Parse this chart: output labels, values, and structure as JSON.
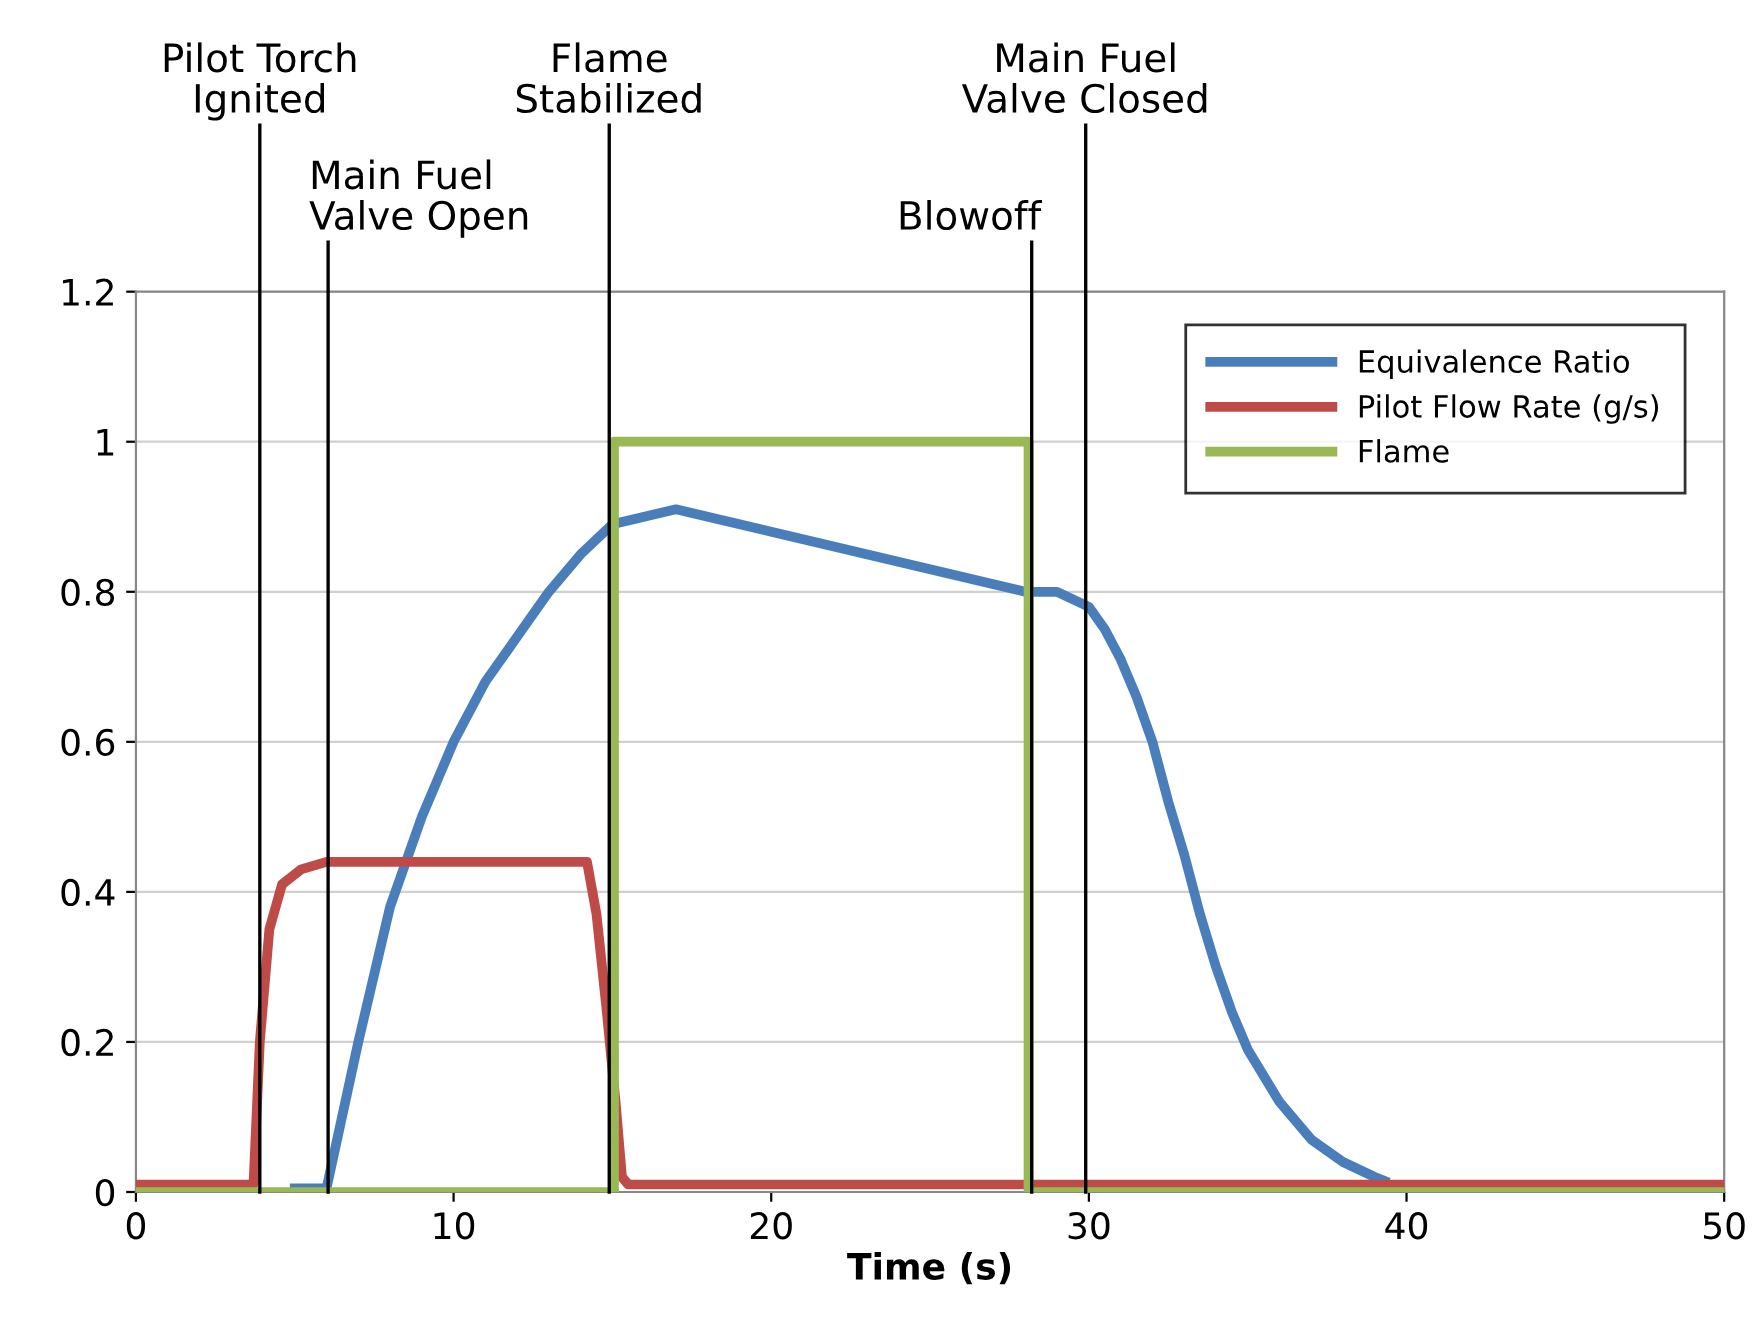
{
  "chart_data": {
    "type": "line",
    "xlabel": "Time (s)",
    "xlim": [
      0,
      50
    ],
    "xticks": [
      0,
      10,
      20,
      30,
      40,
      50
    ],
    "ylim": [
      0,
      1.2
    ],
    "yticks": [
      0,
      0.2,
      0.4,
      0.6,
      0.8,
      1,
      1.2
    ],
    "grid": "y",
    "legend": "top right",
    "marker": "none",
    "line_style": "solid",
    "series": [
      {
        "name": "Equivalence Ratio",
        "color": "#4a7ebb",
        "x": [
          5,
          6,
          7,
          8,
          9,
          10,
          11,
          12,
          13,
          14,
          15,
          16,
          17,
          18,
          20,
          22,
          24,
          26,
          28,
          29,
          30,
          30.5,
          31,
          31.5,
          32,
          32.5,
          33,
          33.5,
          34,
          34.5,
          35,
          36,
          37,
          38,
          39,
          39.3
        ],
        "values": [
          0.005,
          0.005,
          0.2,
          0.38,
          0.5,
          0.6,
          0.68,
          0.74,
          0.8,
          0.85,
          0.89,
          0.9,
          0.91,
          0.9,
          0.88,
          0.86,
          0.84,
          0.82,
          0.8,
          0.8,
          0.78,
          0.75,
          0.71,
          0.66,
          0.6,
          0.52,
          0.45,
          0.37,
          0.3,
          0.24,
          0.19,
          0.12,
          0.07,
          0.04,
          0.02,
          0.015
        ]
      },
      {
        "name": "Pilot Flow Rate (g/s)",
        "color": "#be4b48",
        "x": [
          0,
          3.7,
          3.9,
          4.2,
          4.6,
          5.2,
          6,
          7,
          10,
          12,
          14.2,
          14.5,
          14.8,
          15.1,
          15.3,
          15.5,
          20,
          30,
          40,
          50
        ],
        "values": [
          0.01,
          0.01,
          0.2,
          0.35,
          0.41,
          0.43,
          0.44,
          0.44,
          0.44,
          0.44,
          0.44,
          0.37,
          0.25,
          0.12,
          0.02,
          0.01,
          0.01,
          0.01,
          0.01,
          0.01
        ]
      },
      {
        "name": "Flame",
        "color": "#98b954",
        "x": [
          0,
          15.05,
          15.05,
          28.1,
          28.1,
          50
        ],
        "values": [
          0,
          0,
          1,
          1,
          0,
          0
        ]
      }
    ],
    "ref_lines": [
      {
        "axis": "x",
        "value": 3.9,
        "label": "Pilot Torch\nIgnited",
        "color": "#000000"
      },
      {
        "axis": "x",
        "value": 6.05,
        "label": "Main Fuel\nValve Open",
        "color": "#000000"
      },
      {
        "axis": "x",
        "value": 14.9,
        "label": "Flame\nStabilized",
        "color": "#000000"
      },
      {
        "axis": "x",
        "value": 28.2,
        "label": "Blowoff",
        "color": "#000000"
      },
      {
        "axis": "x",
        "value": 29.9,
        "label": "Main Fuel\nValve Closed",
        "color": "#000000"
      }
    ]
  }
}
